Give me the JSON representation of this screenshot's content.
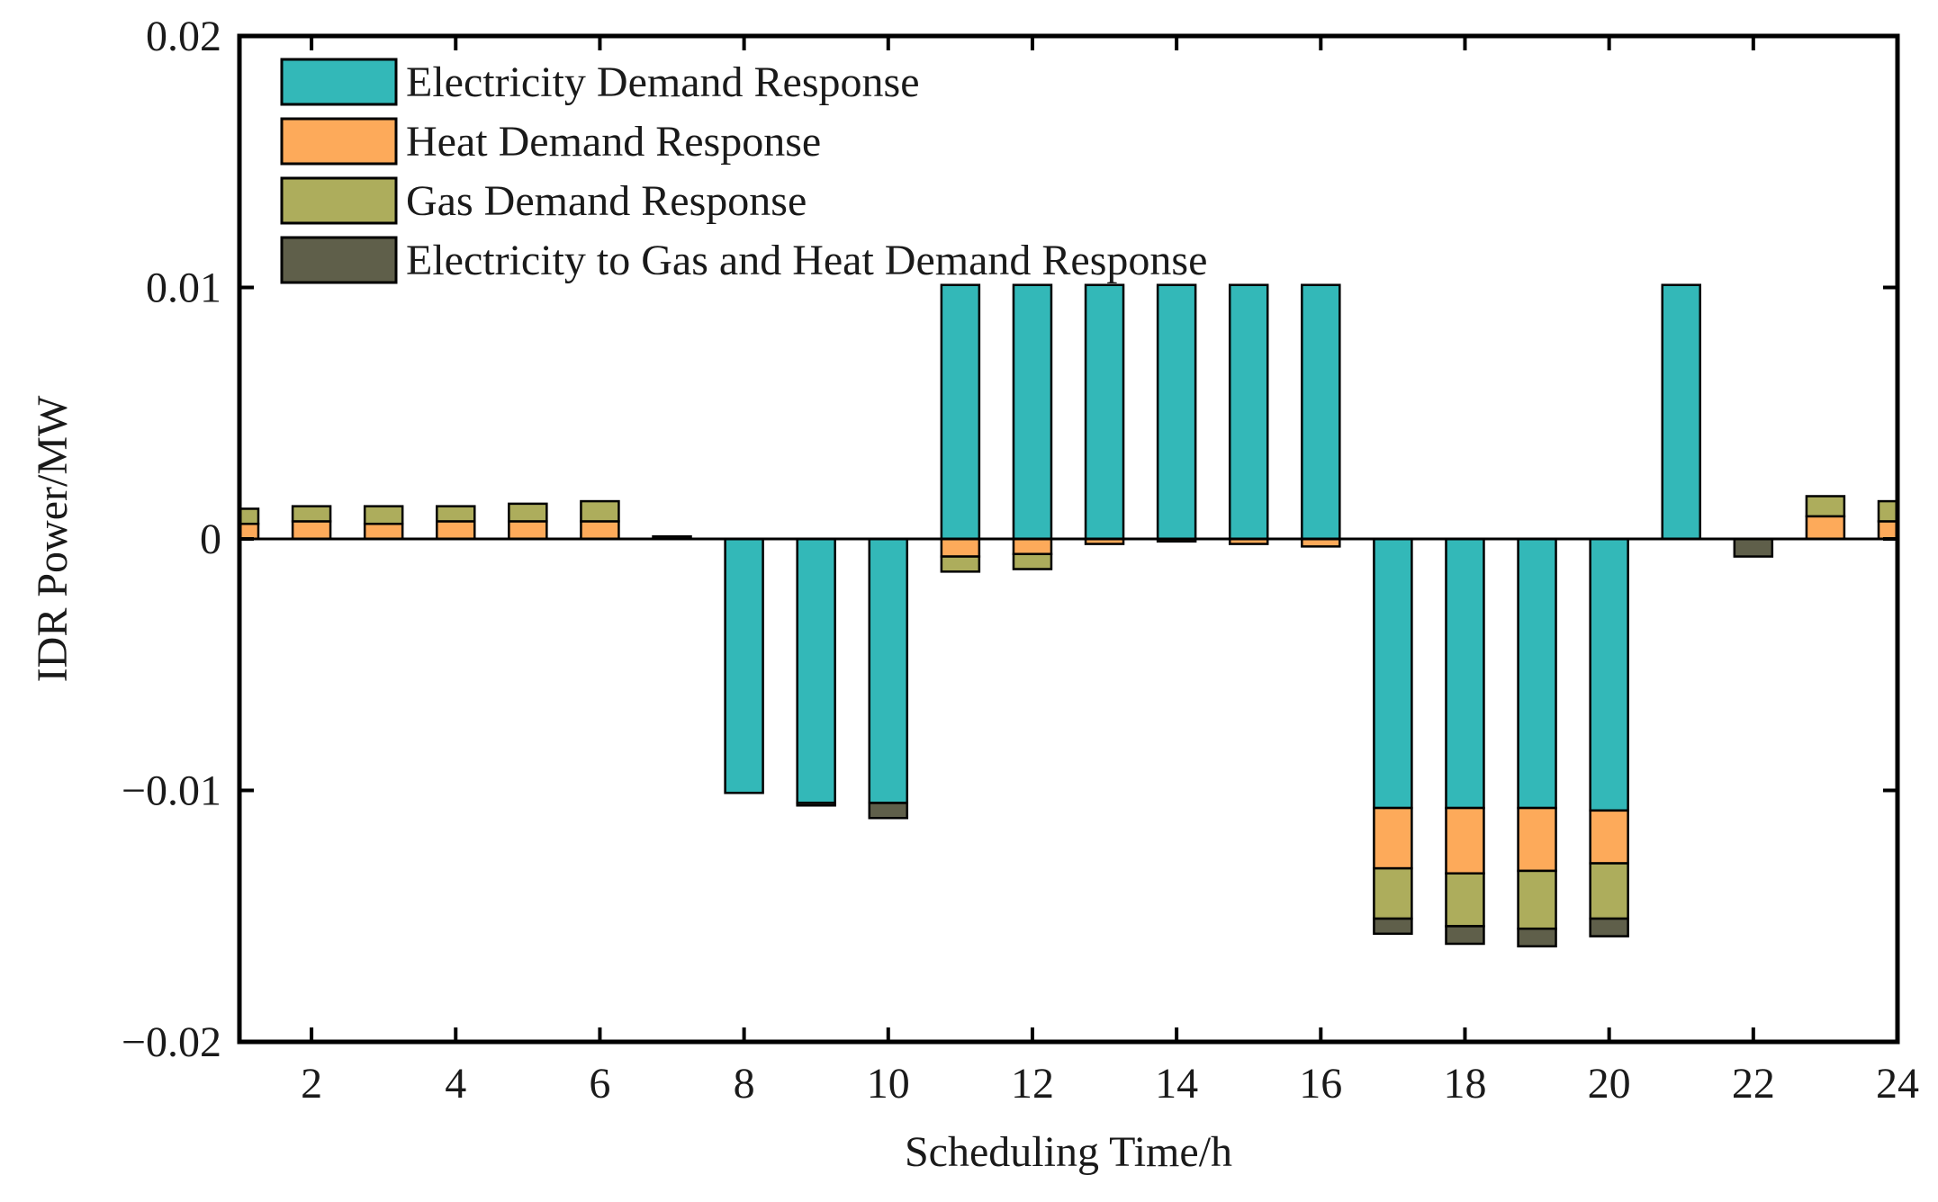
{
  "chart_data": {
    "type": "bar",
    "stacked": true,
    "xlabel": "Scheduling Time/h",
    "ylabel": "IDR Power/MW",
    "xlim": [
      1,
      24
    ],
    "ylim": [
      -0.02,
      0.02
    ],
    "x_ticks": [
      2,
      4,
      6,
      8,
      10,
      12,
      14,
      16,
      18,
      20,
      22,
      24
    ],
    "x_tick_labels": [
      "2",
      "4",
      "6",
      "8",
      "10",
      "12",
      "14",
      "16",
      "18",
      "20",
      "22",
      "24"
    ],
    "y_ticks": [
      -0.02,
      -0.01,
      0,
      0.01,
      0.02
    ],
    "y_tick_labels": [
      "−0.02",
      "−0.01",
      "0",
      "0.01",
      "0.02"
    ],
    "legend_position": "top-left",
    "categories": [
      1,
      2,
      3,
      4,
      5,
      6,
      7,
      8,
      9,
      10,
      11,
      12,
      13,
      14,
      15,
      16,
      17,
      18,
      19,
      20,
      21,
      22,
      23,
      24
    ],
    "series": [
      {
        "name": "Electricity Demand Response",
        "color": "#33b8b8",
        "values": [
          0,
          0,
          0,
          0,
          0,
          0,
          0,
          -0.0101,
          -0.0105,
          -0.0105,
          0.0101,
          0.0101,
          0.0101,
          0.0101,
          0.0101,
          0.0101,
          -0.0107,
          -0.0107,
          -0.0107,
          -0.0108,
          0.0101,
          0,
          0,
          0
        ]
      },
      {
        "name": "Heat Demand Response",
        "color": "#fdaa5a",
        "values": [
          0.0006,
          0.0007,
          0.0006,
          0.0007,
          0.0007,
          0.0007,
          0,
          0,
          0,
          0,
          -0.0007,
          -0.0006,
          -0.0002,
          -0.0001,
          -0.0002,
          -0.0003,
          -0.0024,
          -0.0026,
          -0.0025,
          -0.0021,
          0,
          0,
          0.0009,
          0.0007
        ]
      },
      {
        "name": "Gas Demand Response",
        "color": "#adad5c",
        "values": [
          0.0006,
          0.0006,
          0.0007,
          0.0006,
          0.0007,
          0.0008,
          0,
          0,
          0,
          0,
          -0.0006,
          -0.0006,
          0,
          0,
          0,
          0,
          -0.002,
          -0.0021,
          -0.0023,
          -0.0022,
          0,
          0,
          0.0008,
          0.0008
        ]
      },
      {
        "name": "Electricity to Gas and Heat Demand Response",
        "color": "#5f5f4a",
        "values": [
          0,
          0,
          0,
          0,
          0,
          0,
          0.0001,
          0,
          -0.0001,
          -0.0006,
          0,
          0,
          0,
          0,
          0,
          0,
          -0.0006,
          -0.0007,
          -0.0007,
          -0.0007,
          0,
          -0.0007,
          0,
          0
        ]
      }
    ]
  }
}
